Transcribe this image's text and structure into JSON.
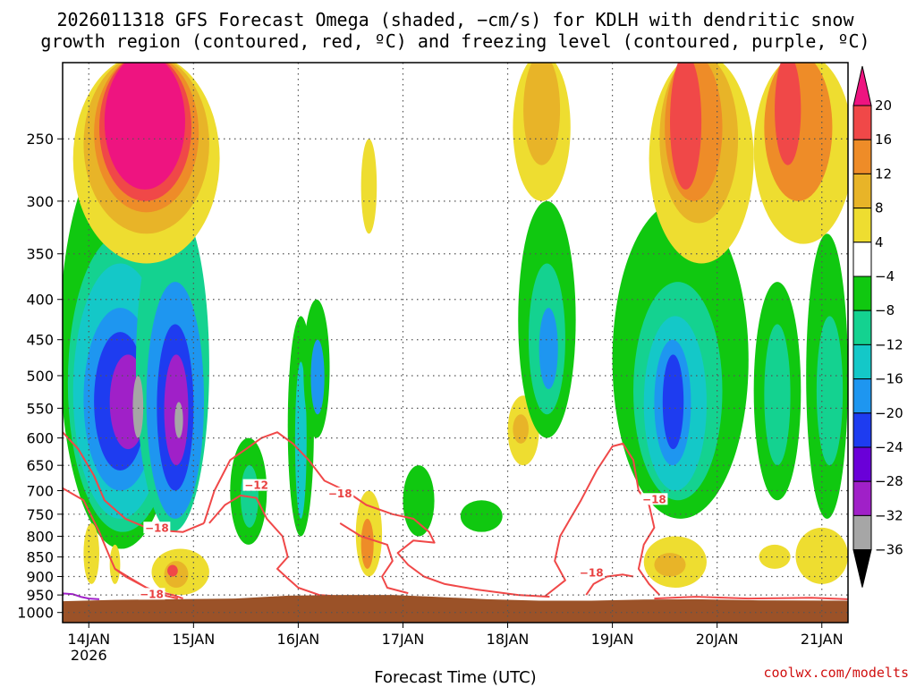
{
  "title_line1": "2026011318 GFS Forecast Omega (shaded, −cm/s) for KDLH with dendritic snow",
  "title_line2": "growth region (contoured, red, ºC) and freezing level (contoured, purple, ºC)",
  "credit": "coolwx.com/modelts",
  "chart_data": {
    "type": "heatmap",
    "title": "2026011318 GFS Forecast Omega (shaded, −cm/s) for KDLH with dendritic snow growth region (contoured, red, ºC) and freezing level (contoured, purple, ºC)",
    "xlabel": "Forecast Time (UTC)",
    "ylabel": "",
    "x_ticks": [
      {
        "label": "14JAN",
        "sublabel": "2026",
        "day": 14
      },
      {
        "label": "15JAN",
        "day": 15
      },
      {
        "label": "16JAN",
        "day": 16
      },
      {
        "label": "17JAN",
        "day": 17
      },
      {
        "label": "18JAN",
        "day": 18
      },
      {
        "label": "19JAN",
        "day": 19
      },
      {
        "label": "20JAN",
        "day": 20
      },
      {
        "label": "21JAN",
        "day": 21
      }
    ],
    "xlim": [
      13.75,
      21.25
    ],
    "y_ticks": [
      250,
      300,
      350,
      400,
      450,
      500,
      550,
      600,
      650,
      700,
      750,
      800,
      850,
      900,
      950,
      1000
    ],
    "ylim_hpa": [
      200,
      1030
    ],
    "colorbar": {
      "levels": [
        -36,
        -32,
        -28,
        -24,
        -20,
        -16,
        -12,
        -8,
        -4,
        4,
        8,
        12,
        16,
        20
      ],
      "labels": [
        "20",
        "16",
        "12",
        "8",
        "4",
        "−4",
        "−8",
        "−12",
        "−16",
        "−20",
        "−24",
        "−28",
        "−32",
        "−36"
      ],
      "colors": [
        "#000000",
        "#a6a6a6",
        "#a020c8",
        "#6a00d8",
        "#1e3cf0",
        "#1e96f0",
        "#14c8c8",
        "#14d290",
        "#10c810",
        "#ffffff",
        "#eedd30",
        "#e8b428",
        "#ee8c28",
        "#f04848",
        "#ee1480"
      ]
    },
    "contour_labels": [
      {
        "text": "−12",
        "day": 15.6,
        "p": 693
      },
      {
        "text": "−18",
        "day": 16.4,
        "p": 710
      },
      {
        "text": "−18",
        "day": 14.65,
        "p": 785
      },
      {
        "text": "−18",
        "day": 14.6,
        "p": 953
      },
      {
        "text": "−18",
        "day": 18.8,
        "p": 895
      },
      {
        "text": "−18",
        "day": 19.4,
        "p": 722
      }
    ]
  }
}
